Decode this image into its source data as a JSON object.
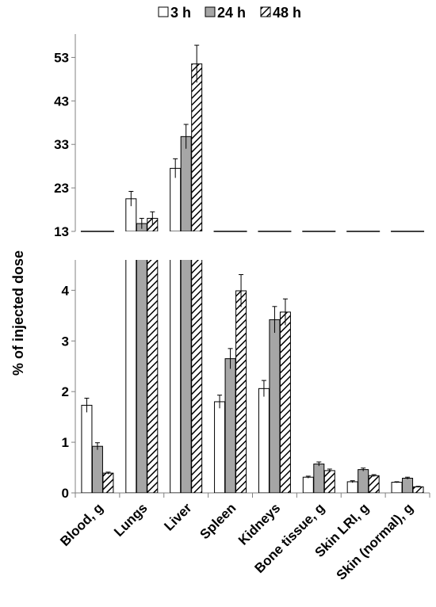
{
  "chart_data": {
    "type": "bar",
    "ylabel": "% of injected dose",
    "categories": [
      "Blood, g",
      "Lungs",
      "Liver",
      "Spleen",
      "Kidneys",
      "Bone tissue, g",
      "Skin LRI, g",
      "Skin (normal), g"
    ],
    "series": [
      {
        "name": "3 h",
        "values": [
          1.73,
          20.5,
          27.5,
          1.8,
          2.06,
          0.31,
          0.22,
          0.21
        ],
        "errors": [
          0.14,
          1.7,
          2.2,
          0.13,
          0.16,
          0.02,
          0.02,
          0.01
        ]
      },
      {
        "name": "24 h",
        "values": [
          0.92,
          14.8,
          34.8,
          2.65,
          3.42,
          0.57,
          0.46,
          0.29
        ],
        "errors": [
          0.07,
          1.2,
          2.8,
          0.2,
          0.26,
          0.04,
          0.03,
          0.02
        ]
      },
      {
        "name": "48 h",
        "values": [
          0.39,
          16.0,
          51.5,
          3.99,
          3.57,
          0.44,
          0.34,
          0.12
        ],
        "errors": [
          0.02,
          1.5,
          4.3,
          0.32,
          0.26,
          0.03,
          0.02,
          0.01
        ]
      }
    ],
    "series_styles": {
      "3 h": "white",
      "24 h": "gray",
      "48 h": "hatched"
    },
    "colors": {
      "gray_fill": "#a6a6a6",
      "axis": "#808080",
      "bar_stroke": "#000000"
    },
    "upper_axis": {
      "ylim": [
        13,
        58
      ],
      "ticks": [
        "13",
        "23",
        "33",
        "43",
        "53"
      ],
      "tick_values": [
        13,
        23,
        33,
        43,
        53
      ]
    },
    "lower_axis": {
      "ylim": [
        0,
        4.6
      ],
      "ticks": [
        "0",
        "1",
        "2",
        "3",
        "4"
      ],
      "tick_values": [
        0,
        1,
        2,
        3,
        4
      ]
    },
    "axis_break": true,
    "legend_position": "top",
    "grid": false
  }
}
